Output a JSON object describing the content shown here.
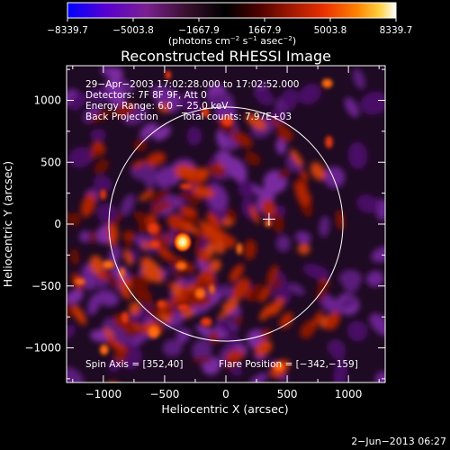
{
  "chart_data": {
    "type": "heatmap",
    "title": "Reconstructed RHESSI Image",
    "xlabel": "Heliocentric X (arcsec)",
    "ylabel": "Heliocentric Y (arcsec)",
    "xlim": [
      -1300,
      1300
    ],
    "ylim": [
      -1280,
      1280
    ],
    "x_ticks": [
      -1000,
      -500,
      0,
      500,
      1000
    ],
    "y_ticks": [
      -1000,
      -500,
      0,
      500,
      1000
    ],
    "x_tick_labels": [
      "−1000",
      "−500",
      "0",
      "500",
      "1000"
    ],
    "y_tick_labels": [
      "−1000",
      "−500",
      "0",
      "500",
      "1000"
    ],
    "colorbar": {
      "range": [
        -8339.7,
        8339.7
      ],
      "tick_values": [
        -8339.7,
        -5003.8,
        -1667.9,
        1667.9,
        5003.8,
        8339.7
      ],
      "tick_labels": [
        "−8339.7",
        "−5003.8",
        "−1667.9",
        "1667.9",
        "5003.8",
        "8339.7"
      ],
      "unit_label_parts": {
        "a": "(photons cm",
        "b": "−2",
        "c": " s",
        "d": "−1",
        "e": " asec",
        "f": "−2",
        "g": ")"
      },
      "colors": [
        "#0000ff",
        "#6a00c0",
        "#7a2080",
        "#2a0018",
        "#000000",
        "#3a0000",
        "#a01800",
        "#e03000",
        "#ff7a00",
        "#ffd040",
        "#ffffff"
      ]
    },
    "annotations": {
      "time": "29−Apr−2003 17:02:28.000 to 17:02:52.000",
      "detectors": "Detectors: 7F 8F 9F, Att 0",
      "energy": "Energy Range: 6.0 − 25.0 keV",
      "method": "Back Projection",
      "counts": "Total counts: 7.97E+03",
      "spin_axis": "Spin Axis = [352,40]",
      "flare_position": "Flare Position = [−342,−159]"
    },
    "solar_limb_radius_arcsec": 955,
    "spin_axis": [
      352,
      40
    ],
    "flare_position": [
      -342,
      -159
    ],
    "grid": false
  },
  "footer": {
    "date": "2−Jun−2013 06:27"
  }
}
